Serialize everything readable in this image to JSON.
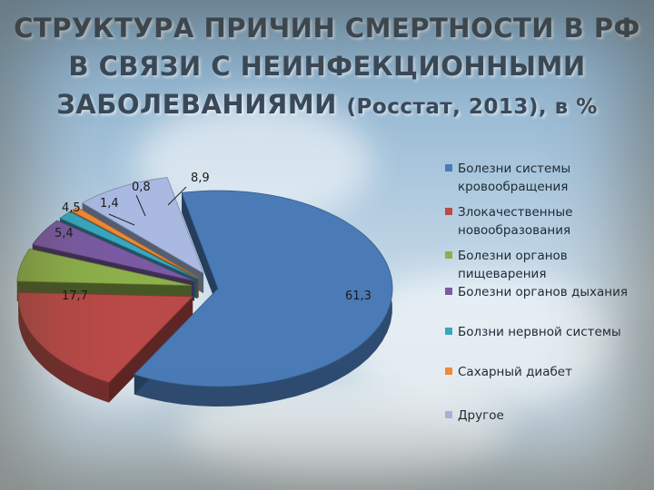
{
  "title": {
    "line1": "СТРУКТУРА ПРИЧИН СМЕРТНОСТИ В РФ",
    "line2": "В СВЯЗИ С НЕИНФЕКЦИОННЫМИ",
    "line3_main": "ЗАБОЛЕВАНИЯМИ",
    "line3_sub": "(Росстат, 2013), в %"
  },
  "chart_data": {
    "type": "pie",
    "style": "3d-exploded",
    "legend_position": "right",
    "slices": [
      {
        "label": "Болезни системы\nкровообращения",
        "value": 61.3,
        "display": "61,3",
        "color": "#4a7bb7"
      },
      {
        "label": "Злокачественные\nновообразования",
        "value": 17.7,
        "display": "17,7",
        "color": "#b94a48"
      },
      {
        "label": "Болезни органов\nпищеварения",
        "value": 5.4,
        "display": "5,4",
        "color": "#8db04b"
      },
      {
        "label": "Болезни органов дыхания",
        "value": 4.5,
        "display": "4,5",
        "color": "#7a5ba3"
      },
      {
        "label": "Болзни нервной системы",
        "value": 1.4,
        "display": "1,4",
        "color": "#3aa7c0"
      },
      {
        "label": "Сахарный диабет",
        "value": 0.8,
        "display": "0,8",
        "color": "#ef8a36"
      },
      {
        "label": "Другое",
        "value": 8.9,
        "display": "8,9",
        "color": "#a9b9e2"
      }
    ]
  }
}
